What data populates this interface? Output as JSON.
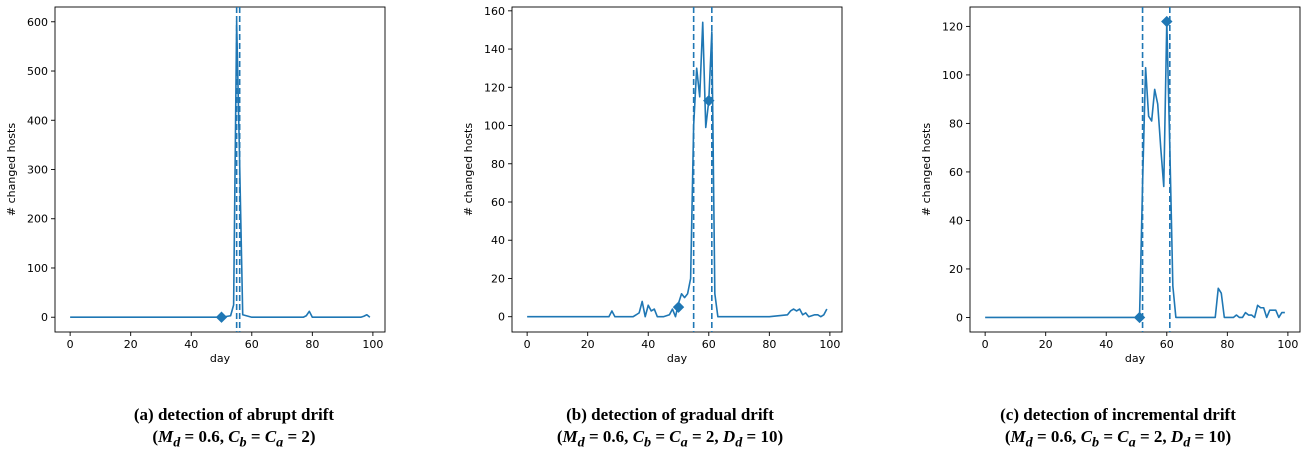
{
  "chart_data": [
    {
      "type": "line",
      "xlabel": "day",
      "ylabel": "# changed hosts",
      "xlim": [
        -5,
        104
      ],
      "ylim": [
        -30,
        630
      ],
      "xticks": [
        0,
        20,
        40,
        60,
        80,
        100
      ],
      "yticks": [
        0,
        100,
        200,
        300,
        400,
        500,
        600
      ],
      "color": "#1f77b4",
      "vlines": [
        55,
        56
      ],
      "marker_points": [
        [
          50,
          0
        ]
      ],
      "series": [
        {
          "x": [
            0,
            10,
            20,
            30,
            40,
            50,
            53,
            54,
            55,
            56,
            57,
            60,
            70,
            77,
            78,
            79,
            80,
            90,
            95,
            96,
            97,
            98,
            99
          ],
          "values": [
            0,
            0,
            0,
            0,
            0,
            0,
            3,
            25,
            600,
            310,
            5,
            0,
            0,
            0,
            3,
            12,
            0,
            0,
            0,
            0,
            2,
            5,
            0
          ]
        }
      ],
      "caption_title": "(a) detection of abrupt drift",
      "caption_params": "(M_d = 0.6, C_b = C_a = 2)"
    },
    {
      "type": "line",
      "xlabel": "day",
      "ylabel": "# changed hosts",
      "xlim": [
        -5,
        104
      ],
      "ylim": [
        -8,
        162
      ],
      "xticks": [
        0,
        20,
        40,
        60,
        80,
        100
      ],
      "yticks": [
        0,
        20,
        40,
        60,
        80,
        100,
        120,
        140,
        160
      ],
      "color": "#1f77b4",
      "vlines": [
        55,
        61
      ],
      "marker_points": [
        [
          50,
          5
        ],
        [
          60,
          113
        ]
      ],
      "series": [
        {
          "x": [
            0,
            10,
            20,
            27,
            28,
            29,
            35,
            37,
            38,
            39,
            40,
            41,
            42,
            43,
            45,
            47,
            48,
            49,
            50,
            51,
            52,
            53,
            54,
            55,
            56,
            57,
            58,
            59,
            60,
            61,
            62,
            63,
            65,
            70,
            80,
            86,
            87,
            88,
            89,
            90,
            91,
            92,
            93,
            95,
            96,
            97,
            98,
            99
          ],
          "values": [
            0,
            0,
            0,
            0,
            3,
            0,
            0,
            2,
            8,
            0,
            6,
            3,
            4,
            0,
            0,
            1,
            4,
            0,
            7,
            12,
            10,
            12,
            20,
            100,
            130,
            115,
            154,
            99,
            113,
            149,
            12,
            0,
            0,
            0,
            0,
            1,
            3,
            4,
            3,
            4,
            1,
            2,
            0,
            1,
            1,
            0,
            1,
            4
          ]
        }
      ],
      "caption_title": "(b) detection of gradual drift",
      "caption_params": "(M_d = 0.6, C_b = C_a = 2, D_d = 10)"
    },
    {
      "type": "line",
      "xlabel": "day",
      "ylabel": "# changed hosts",
      "xlim": [
        -5,
        104
      ],
      "ylim": [
        -6,
        128
      ],
      "xticks": [
        0,
        20,
        40,
        60,
        80,
        100
      ],
      "yticks": [
        0,
        20,
        40,
        60,
        80,
        100,
        120
      ],
      "color": "#1f77b4",
      "vlines": [
        52,
        61
      ],
      "marker_points": [
        [
          51,
          0
        ],
        [
          60,
          122
        ]
      ],
      "series": [
        {
          "x": [
            0,
            10,
            20,
            30,
            40,
            50,
            51,
            52,
            53,
            54,
            55,
            56,
            57,
            58,
            59,
            60,
            61,
            62,
            63,
            70,
            76,
            77,
            78,
            79,
            80,
            82,
            83,
            84,
            85,
            86,
            87,
            88,
            89,
            90,
            91,
            92,
            93,
            94,
            95,
            96,
            97,
            98,
            99
          ],
          "values": [
            0,
            0,
            0,
            0,
            0,
            0,
            0,
            55,
            103,
            83,
            81,
            94,
            88,
            70,
            54,
            122,
            70,
            13,
            0,
            0,
            0,
            12,
            10,
            0,
            0,
            0,
            1,
            0,
            0,
            2,
            1,
            1,
            0,
            5,
            4,
            4,
            0,
            3,
            3,
            3,
            0,
            2,
            2
          ]
        }
      ],
      "caption_title": "(c) detection of incremental drift",
      "caption_params": "(M_d = 0.6, C_b = C_a = 2, D_d = 10)"
    }
  ]
}
